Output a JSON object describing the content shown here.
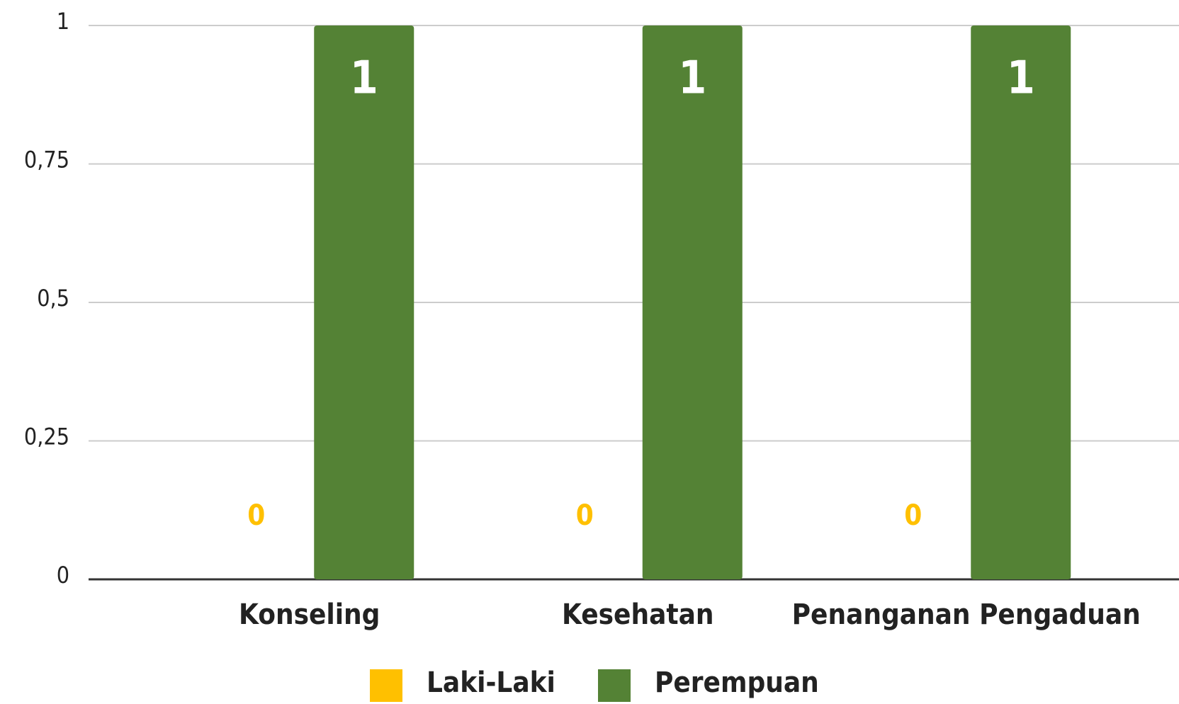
{
  "chart_data": {
    "type": "bar",
    "categories": [
      "Konseling",
      "Kesehatan",
      "Penanganan Pengaduan"
    ],
    "series": [
      {
        "name": "Laki-Laki",
        "color": "#ffc000",
        "values": [
          0,
          0,
          0
        ]
      },
      {
        "name": "Perempuan",
        "color": "#548235",
        "values": [
          1,
          1,
          1
        ]
      }
    ],
    "ylim": [
      0,
      1
    ],
    "yticks": [
      0,
      {
        "value": 0.25,
        "label": "0,25"
      },
      {
        "value": 0.5,
        "label": "0,5"
      },
      {
        "value": 0.75,
        "label": "0,75"
      },
      1
    ],
    "grid": true,
    "legend": "bottom"
  }
}
